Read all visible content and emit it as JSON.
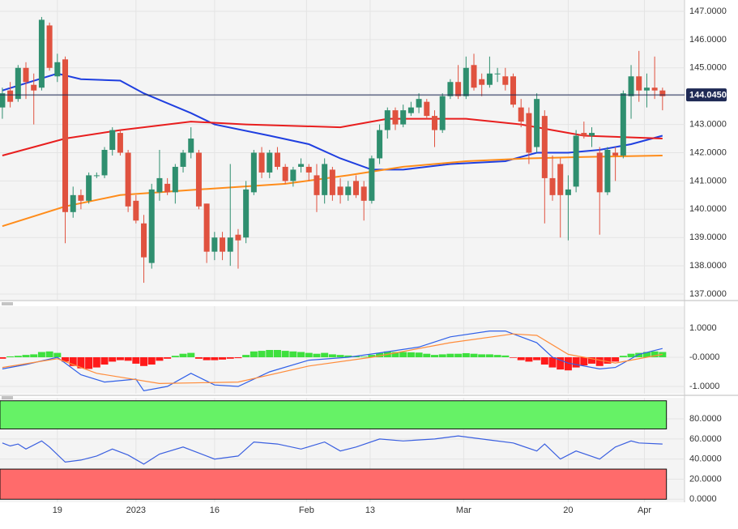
{
  "chart_data": [
    {
      "type": "candlestick",
      "xlim": [
        -0.3,
        86.8
      ],
      "ylim": [
        136.8,
        147.4
      ],
      "yticks": [
        {
          "value": 137,
          "label": "137.0000"
        },
        {
          "value": 138,
          "label": "138.0000"
        },
        {
          "value": 139,
          "label": "139.0000"
        },
        {
          "value": 140,
          "label": "140.0000"
        },
        {
          "value": 141,
          "label": "141.0000"
        },
        {
          "value": 142,
          "label": "142.0000"
        },
        {
          "value": 143,
          "label": "143.0000"
        },
        {
          "value": 144,
          "label": "144.0000"
        },
        {
          "value": 145,
          "label": "145.0000"
        },
        {
          "value": 146,
          "label": "146.0000"
        },
        {
          "value": 147,
          "label": "147.0000"
        }
      ],
      "up_color": "#2f8f6f",
      "down_color": "#e0523f",
      "open": [
        143.6,
        144.2,
        143.9,
        145.0,
        144.4,
        144.3,
        146.5,
        144.7,
        145.3,
        139.9,
        140.5,
        140.3,
        141.2,
        141.2,
        142.1,
        142.7,
        142.0,
        140.3,
        139.5,
        138.1,
        140.6,
        140.9,
        140.6,
        141.5,
        142.0,
        142.0,
        140.2,
        138.5,
        139.0,
        138.5,
        139.1,
        139.0,
        140.6,
        142.0,
        141.3,
        142.0,
        141.5,
        141.0,
        141.5,
        141.5,
        141.2,
        140.5,
        141.4,
        140.8,
        140.5,
        141.0,
        140.8,
        140.3,
        141.8,
        142.8,
        143.5,
        143.0,
        143.4,
        143.6,
        143.8,
        143.3,
        142.8,
        144.0,
        144.5,
        144.0,
        145.1,
        144.6,
        144.4,
        144.8,
        144.7,
        144.7,
        143.6,
        143.4,
        142.2,
        143.3,
        141.1,
        141.6,
        140.5,
        140.8,
        142.7,
        142.6,
        142.0,
        140.6,
        142.0,
        141.9,
        144.0,
        144.7,
        144.2,
        144.3,
        144.2
      ],
      "high": [
        144.3,
        144.5,
        145.1,
        145.2,
        144.8,
        146.8,
        146.6,
        145.5,
        145.4,
        140.8,
        140.7,
        141.3,
        141.3,
        142.2,
        142.9,
        142.8,
        142.1,
        140.5,
        139.8,
        140.9,
        142.1,
        141.1,
        141.6,
        142.1,
        142.9,
        142.1,
        140.2,
        139.2,
        139.2,
        141.6,
        139.3,
        141.0,
        142.1,
        142.2,
        142.1,
        142.2,
        141.6,
        141.5,
        141.8,
        141.6,
        141.6,
        141.8,
        141.5,
        141.1,
        141.0,
        141.2,
        141.0,
        141.9,
        143.0,
        143.6,
        143.6,
        143.7,
        143.8,
        144.1,
        143.9,
        143.5,
        144.1,
        144.6,
        145.1,
        145.4,
        145.5,
        144.8,
        145.4,
        145.0,
        145.0,
        144.8,
        143.9,
        143.6,
        144.1,
        143.5,
        141.9,
        141.8,
        141.2,
        142.8,
        143.1,
        142.9,
        142.2,
        142.2,
        142.2,
        144.2,
        145.1,
        145.6,
        144.8,
        145.4,
        144.3
      ],
      "low": [
        143.2,
        143.6,
        143.8,
        143.9,
        143.0,
        144.2,
        144.9,
        144.5,
        138.8,
        139.7,
        140.0,
        140.2,
        141.1,
        141.1,
        141.9,
        141.9,
        139.9,
        139.5,
        137.4,
        137.9,
        140.3,
        140.5,
        140.2,
        141.3,
        141.8,
        140.0,
        138.1,
        138.2,
        138.2,
        138.0,
        137.9,
        138.8,
        140.5,
        141.1,
        141.1,
        141.4,
        140.9,
        140.8,
        141.3,
        141.0,
        139.9,
        140.2,
        140.3,
        140.2,
        140.3,
        140.4,
        139.6,
        140.2,
        141.6,
        142.5,
        142.8,
        142.9,
        143.3,
        143.4,
        143.2,
        142.2,
        142.7,
        143.9,
        143.9,
        143.9,
        144.2,
        144.0,
        144.3,
        144.5,
        144.2,
        143.6,
        142.9,
        141.6,
        142.0,
        139.5,
        140.3,
        139.0,
        138.9,
        140.6,
        142.5,
        142.2,
        139.1,
        140.5,
        141.0,
        141.8,
        143.2,
        143.8,
        143.6,
        143.9,
        143.5
      ],
      "close": [
        144.1,
        143.8,
        145.0,
        144.5,
        144.2,
        146.7,
        145.0,
        145.2,
        139.9,
        140.5,
        140.3,
        141.2,
        141.2,
        142.1,
        142.8,
        142.0,
        140.1,
        139.6,
        138.3,
        140.7,
        141.1,
        140.6,
        141.5,
        142.0,
        142.5,
        140.1,
        138.5,
        139.0,
        138.5,
        139.0,
        138.9,
        140.7,
        142.0,
        141.3,
        142.0,
        141.5,
        141.0,
        141.4,
        141.6,
        141.3,
        140.5,
        141.6,
        140.5,
        140.5,
        140.8,
        140.5,
        140.3,
        141.8,
        142.8,
        143.5,
        143.0,
        143.5,
        143.6,
        143.9,
        143.3,
        142.8,
        144.0,
        144.5,
        144.0,
        145.0,
        144.3,
        144.4,
        144.8,
        144.8,
        144.4,
        143.7,
        143.1,
        142.0,
        143.9,
        141.1,
        140.5,
        140.5,
        140.7,
        142.6,
        142.6,
        142.7,
        140.6,
        142.1,
        141.9,
        144.1,
        144.7,
        144.2,
        144.3,
        144.2,
        144.0
      ],
      "lines": [
        {
          "color": "#1f3fe0",
          "x": [
            0,
            7,
            10,
            15,
            18,
            24,
            27,
            34,
            39,
            43,
            47,
            51,
            57,
            64,
            68,
            72,
            76,
            80,
            84
          ],
          "values": [
            144.2,
            144.8,
            144.6,
            144.55,
            144.1,
            143.4,
            143.0,
            142.6,
            142.3,
            141.8,
            141.4,
            141.4,
            141.6,
            141.7,
            142.0,
            142.0,
            142.1,
            142.3,
            142.6
          ]
        },
        {
          "color": "#e81e1e",
          "x": [
            0,
            8,
            15,
            24,
            31,
            43,
            49,
            59,
            66,
            70,
            74,
            84
          ],
          "values": [
            141.9,
            142.5,
            142.8,
            143.1,
            143.0,
            142.9,
            143.2,
            143.2,
            143.0,
            142.8,
            142.6,
            142.5
          ]
        },
        {
          "color": "#ff8c1a",
          "x": [
            0,
            8,
            15,
            25,
            36,
            44,
            51,
            59,
            67,
            74,
            84
          ],
          "values": [
            139.4,
            140.1,
            140.5,
            140.7,
            140.9,
            141.2,
            141.5,
            141.7,
            141.8,
            141.85,
            141.9
          ]
        }
      ],
      "last_price": {
        "value": 144.045,
        "label": "144.0450"
      },
      "last_price_color": "#1f2a55"
    },
    {
      "type": "macd",
      "xlim": [
        -0.3,
        86.8
      ],
      "ylim": [
        -1.25,
        1.75
      ],
      "yticks": [
        {
          "value": 1,
          "label": "1.0000"
        },
        {
          "value": 0,
          "label": "-0.0000"
        },
        {
          "value": -1,
          "label": "-1.0000"
        }
      ],
      "positive_color": "#3ee03e",
      "negative_color": "#ff1a1a",
      "histogram": [
        -0.05,
        0.03,
        0.05,
        0.08,
        0.1,
        0.18,
        0.2,
        0.15,
        -0.15,
        -0.3,
        -0.38,
        -0.4,
        -0.35,
        -0.25,
        -0.15,
        -0.1,
        -0.12,
        -0.22,
        -0.3,
        -0.25,
        -0.12,
        -0.05,
        0.05,
        0.12,
        0.15,
        -0.05,
        -0.1,
        -0.1,
        -0.08,
        -0.05,
        -0.03,
        0.08,
        0.2,
        0.22,
        0.25,
        0.25,
        0.22,
        0.2,
        0.18,
        0.15,
        0.12,
        0.15,
        0.1,
        0.08,
        0.06,
        0.04,
        0.02,
        0.08,
        0.15,
        0.2,
        0.18,
        0.18,
        0.17,
        0.16,
        0.12,
        0.08,
        0.1,
        0.12,
        0.12,
        0.14,
        0.12,
        0.1,
        0.1,
        0.08,
        0.06,
        -0.02,
        -0.1,
        -0.15,
        -0.1,
        -0.25,
        -0.35,
        -0.42,
        -0.45,
        -0.35,
        -0.28,
        -0.22,
        -0.3,
        -0.22,
        -0.15,
        0.05,
        0.12,
        0.15,
        0.18,
        0.2,
        0.18
      ],
      "lines": [
        {
          "color": "#2f5fe8",
          "x": [
            0,
            3,
            7,
            10,
            13,
            17,
            18,
            21,
            24,
            27,
            30,
            34,
            39,
            44,
            48,
            53,
            57,
            62,
            64,
            68,
            70,
            72,
            76,
            78,
            81,
            84
          ],
          "values": [
            -0.4,
            -0.25,
            0.0,
            -0.6,
            -0.85,
            -0.75,
            -1.15,
            -1.0,
            -0.55,
            -0.95,
            -1.0,
            -0.5,
            -0.1,
            0.0,
            0.15,
            0.35,
            0.7,
            0.9,
            0.9,
            0.5,
            0.0,
            -0.2,
            -0.4,
            -0.35,
            0.1,
            0.3
          ]
        },
        {
          "color": "#ff8c3a",
          "x": [
            0,
            7,
            12,
            20,
            30,
            39,
            47,
            57,
            65,
            68,
            72,
            78,
            84
          ],
          "values": [
            -0.35,
            -0.05,
            -0.55,
            -0.9,
            -0.85,
            -0.3,
            0.0,
            0.5,
            0.8,
            0.75,
            0.1,
            -0.2,
            0.1
          ]
        }
      ]
    },
    {
      "type": "rsi",
      "xlim": [
        -0.3,
        86.8
      ],
      "ylim": [
        -3,
        101
      ],
      "yticks": [
        {
          "value": 0,
          "label": "0.0000"
        },
        {
          "value": 20,
          "label": "20.0000"
        },
        {
          "value": 40,
          "label": "40.0000"
        },
        {
          "value": 60,
          "label": "60.0000"
        },
        {
          "value": 80,
          "label": "80.0000"
        }
      ],
      "bands": [
        {
          "range": [
            70,
            98
          ],
          "color": "#66f266"
        },
        {
          "range": [
            0,
            30
          ],
          "color": "#ff6b6b"
        }
      ],
      "lines": [
        {
          "color": "#3a5fe0",
          "x": [
            0,
            1,
            2,
            3,
            5,
            6,
            8,
            10,
            12,
            14,
            16,
            18,
            20,
            23,
            27,
            30,
            32,
            35,
            38,
            41,
            43,
            45,
            48,
            51,
            55,
            58,
            62,
            65,
            68,
            69,
            71,
            73,
            76,
            78,
            80,
            81,
            84
          ],
          "values": [
            56,
            53,
            55,
            50,
            58,
            52,
            37,
            39,
            43,
            50,
            44,
            35,
            45,
            52,
            40,
            43,
            57,
            55,
            50,
            57,
            48,
            52,
            60,
            58,
            60,
            63,
            59,
            56,
            48,
            55,
            40,
            48,
            40,
            52,
            58,
            56,
            55
          ]
        }
      ],
      "xticks": [
        {
          "value": 7,
          "label": "19"
        },
        {
          "value": 17,
          "label": "2023"
        },
        {
          "value": 27,
          "label": "16"
        },
        {
          "value": 38.7,
          "label": "Feb"
        },
        {
          "value": 46.8,
          "label": "13"
        },
        {
          "value": 58.7,
          "label": "Mar"
        },
        {
          "value": 72,
          "label": "20"
        },
        {
          "value": 81.7,
          "label": "Apr"
        }
      ]
    }
  ]
}
